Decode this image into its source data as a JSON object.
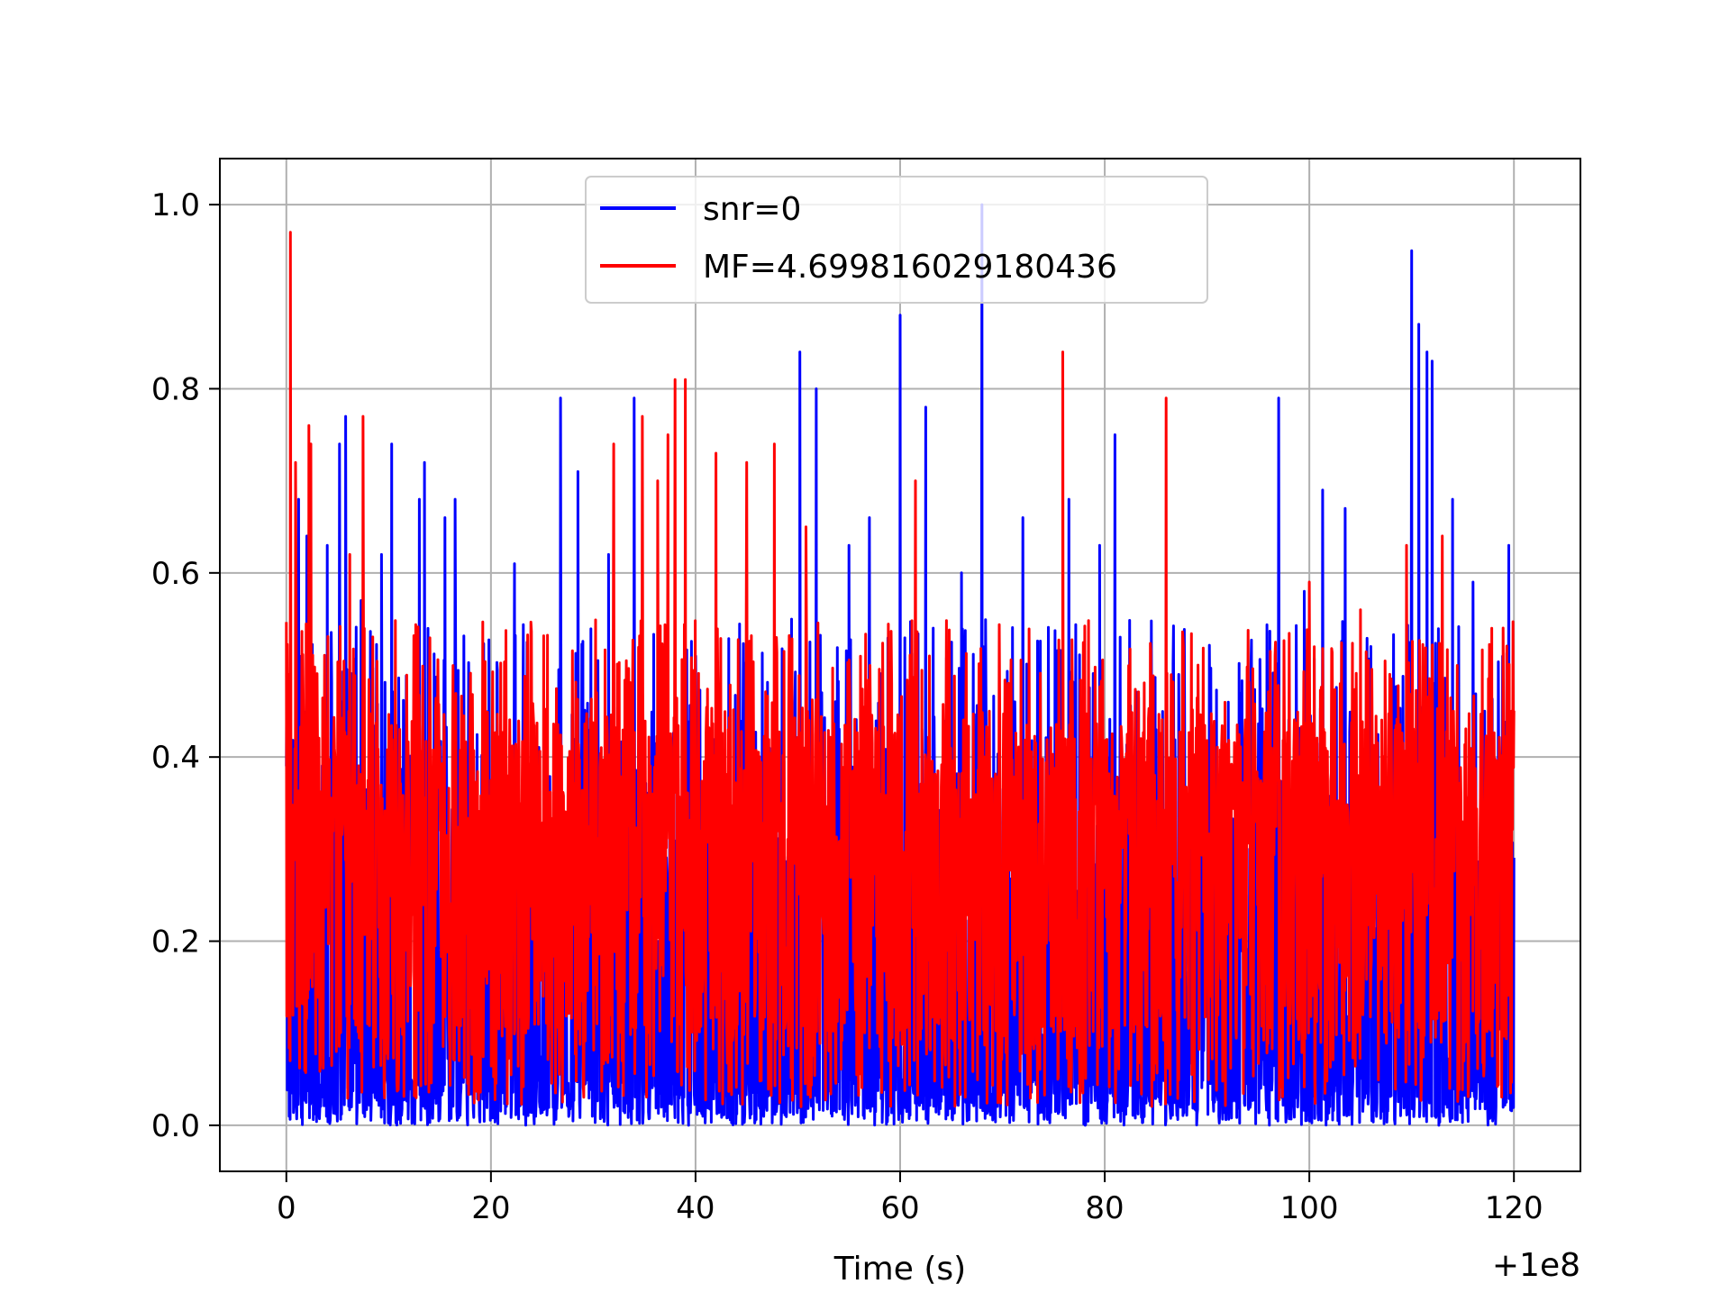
{
  "chart_data": {
    "type": "line",
    "title": "",
    "xlabel": "Time (s)",
    "ylabel": "",
    "x_offset_label": "+1e8",
    "xlim": [
      -6.5,
      126.5
    ],
    "ylim": [
      -0.05,
      1.05
    ],
    "x_range": [
      0,
      120
    ],
    "x_ticks": [
      0,
      20,
      40,
      60,
      80,
      100,
      120
    ],
    "x_tick_labels": [
      "0",
      "20",
      "40",
      "60",
      "80",
      "100",
      "120"
    ],
    "y_ticks": [
      0.0,
      0.2,
      0.4,
      0.6,
      0.8,
      1.0
    ],
    "y_tick_labels": [
      "0.0",
      "0.2",
      "0.4",
      "0.6",
      "0.8",
      "1.0"
    ],
    "grid": true,
    "legend_position": "top-center",
    "series": [
      {
        "name": "snr=0",
        "color": "#0000ff",
        "baseline": [
          0.0,
          0.05
        ],
        "peaks": [
          [
            0.0,
            0.39
          ],
          [
            1.2,
            0.68
          ],
          [
            2.0,
            0.64
          ],
          [
            4.0,
            0.63
          ],
          [
            5.2,
            0.74
          ],
          [
            5.8,
            0.77
          ],
          [
            7.3,
            0.57
          ],
          [
            9.3,
            0.62
          ],
          [
            10.3,
            0.74
          ],
          [
            13.0,
            0.68
          ],
          [
            13.5,
            0.72
          ],
          [
            15.5,
            0.66
          ],
          [
            16.5,
            0.68
          ],
          [
            22.3,
            0.61
          ],
          [
            26.8,
            0.79
          ],
          [
            28.5,
            0.71
          ],
          [
            31.5,
            0.62
          ],
          [
            34.0,
            0.79
          ],
          [
            50.2,
            0.84
          ],
          [
            51.8,
            0.8
          ],
          [
            55.0,
            0.63
          ],
          [
            57.0,
            0.66
          ],
          [
            60.0,
            0.88
          ],
          [
            62.5,
            0.78
          ],
          [
            66.0,
            0.6
          ],
          [
            68.0,
            1.0
          ],
          [
            72.0,
            0.66
          ],
          [
            76.5,
            0.68
          ],
          [
            79.5,
            0.63
          ],
          [
            81.0,
            0.75
          ],
          [
            97.0,
            0.79
          ],
          [
            99.5,
            0.58
          ],
          [
            101.3,
            0.69
          ],
          [
            103.5,
            0.67
          ],
          [
            110.0,
            0.95
          ],
          [
            110.7,
            0.87
          ],
          [
            111.5,
            0.84
          ],
          [
            112.0,
            0.83
          ],
          [
            114.0,
            0.68
          ],
          [
            116.0,
            0.59
          ],
          [
            119.5,
            0.63
          ]
        ]
      },
      {
        "name": "MF=4.699816029180436",
        "color": "#ff0000",
        "baseline": [
          0.02,
          0.2
        ],
        "peaks": [
          [
            0.4,
            0.97
          ],
          [
            0.9,
            0.72
          ],
          [
            2.2,
            0.76
          ],
          [
            2.4,
            0.74
          ],
          [
            6.2,
            0.62
          ],
          [
            7.5,
            0.77
          ],
          [
            32.0,
            0.74
          ],
          [
            34.8,
            0.77
          ],
          [
            36.3,
            0.7
          ],
          [
            37.3,
            0.75
          ],
          [
            38.0,
            0.81
          ],
          [
            39.0,
            0.81
          ],
          [
            42.0,
            0.73
          ],
          [
            45.0,
            0.72
          ],
          [
            47.7,
            0.74
          ],
          [
            50.8,
            0.65
          ],
          [
            61.5,
            0.7
          ],
          [
            75.9,
            0.84
          ],
          [
            86.0,
            0.79
          ],
          [
            100.0,
            0.59
          ],
          [
            105.0,
            0.56
          ],
          [
            109.5,
            0.63
          ],
          [
            113.0,
            0.64
          ],
          [
            119.8,
            0.45
          ]
        ]
      }
    ]
  }
}
